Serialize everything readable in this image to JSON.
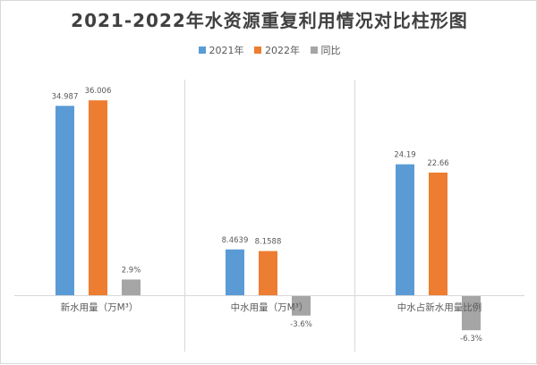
{
  "chart_data": {
    "type": "bar",
    "title": "2021-2022年水资源重复利用情况对比柱形图",
    "categories": [
      "新水用量（万M³）",
      "中水用量（万M³）",
      "中水占新水用量比例"
    ],
    "series": [
      {
        "name": "2021年",
        "color": "#5b9bd5",
        "values": [
          34.987,
          8.4639,
          24.19
        ],
        "labels": [
          "34.987",
          "8.4639",
          "24.19"
        ]
      },
      {
        "name": "2022年",
        "color": "#ed7d31",
        "values": [
          36.006,
          8.1588,
          22.66
        ],
        "labels": [
          "36.006",
          "8.1588",
          "22.66"
        ]
      },
      {
        "name": "同比",
        "color": "#a5a5a5",
        "values": [
          2.9,
          -3.6,
          -6.3
        ],
        "labels": [
          "2.9%",
          "-3.6%",
          "-6.3%"
        ]
      }
    ],
    "grid": false,
    "legend_position": "top"
  }
}
